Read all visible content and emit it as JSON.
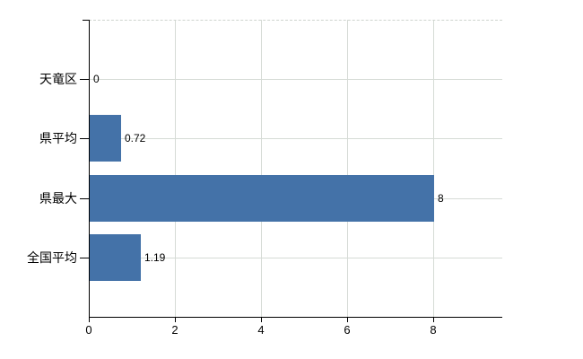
{
  "chart_data": {
    "type": "bar",
    "orientation": "horizontal",
    "title": "",
    "categories": [
      "天竜区",
      "県平均",
      "県最大",
      "全国平均"
    ],
    "values": [
      0,
      0.72,
      8,
      1.19
    ],
    "value_labels": [
      "0",
      "0.72",
      "8",
      "1.19"
    ],
    "x_ticks": [
      0,
      2,
      4,
      6,
      8
    ],
    "x_tick_labels": [
      "0",
      "2",
      "4",
      "6",
      "8"
    ],
    "xlabel": "",
    "ylabel": "",
    "xlim": [
      0,
      9.6
    ],
    "grid": true,
    "legend": false,
    "bar_color": "#4472a8",
    "grid_color": "#d6dbd6",
    "axis_color": "#000000",
    "background_color": "#ffffff"
  }
}
